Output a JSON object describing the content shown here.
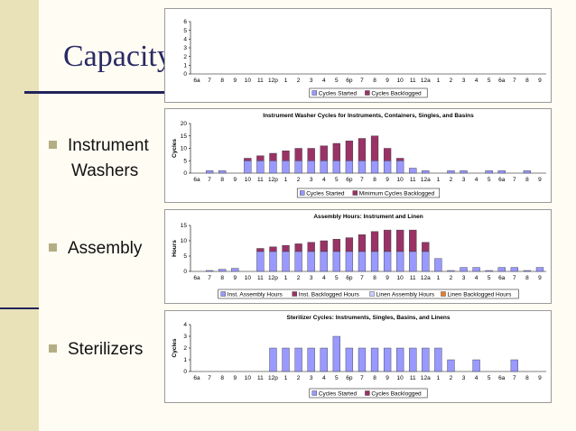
{
  "slide": {
    "title": "Capacity",
    "bullets": [
      {
        "lines": [
          "Instrument",
          "Washers"
        ]
      },
      {
        "lines": [
          "Assembly"
        ]
      },
      {
        "lines": [
          "Sterilizers"
        ]
      }
    ]
  },
  "chart_data": [
    {
      "type": "bar",
      "stacked": true,
      "title": "",
      "ylabel": "",
      "categories": [
        "6a",
        "7",
        "8",
        "9",
        "10",
        "11",
        "12p",
        "1",
        "2",
        "3",
        "4",
        "5",
        "6p",
        "7",
        "8",
        "9",
        "10",
        "11",
        "12a",
        "1",
        "2",
        "3",
        "4",
        "5",
        "6a",
        "7",
        "8",
        "9"
      ],
      "ylim": [
        0,
        6
      ],
      "yticks": [
        0,
        1,
        2,
        3,
        4,
        5,
        6
      ],
      "series": [
        {
          "name": "Cycles Started",
          "color": "#9999ff",
          "values": [
            0,
            0,
            0,
            0,
            0,
            0,
            0,
            0,
            0,
            0,
            0,
            0,
            0,
            0,
            0,
            0,
            0,
            0,
            0,
            0,
            0,
            0,
            0,
            0,
            0,
            0,
            0,
            0
          ]
        },
        {
          "name": "Cycles Backlogged",
          "color": "#993366",
          "values": [
            0,
            0,
            0,
            0,
            0,
            0,
            0,
            0,
            0,
            0,
            0,
            0,
            0,
            0,
            0,
            0,
            0,
            0,
            0,
            0,
            0,
            0,
            0,
            0,
            0,
            0,
            0,
            0
          ]
        }
      ],
      "legend": "bottom"
    },
    {
      "type": "bar",
      "stacked": true,
      "title": "Instrument Washer Cycles for Instruments, Containers, Singles, and Basins",
      "ylabel": "Cycles",
      "categories": [
        "6a",
        "7",
        "8",
        "9",
        "10",
        "11",
        "12p",
        "1",
        "2",
        "3",
        "4",
        "5",
        "6p",
        "7",
        "8",
        "9",
        "10",
        "11",
        "12a",
        "1",
        "2",
        "3",
        "4",
        "5",
        "6a",
        "7",
        "8",
        "9"
      ],
      "ylim": [
        0,
        20
      ],
      "yticks": [
        0,
        5,
        10,
        15,
        20
      ],
      "series": [
        {
          "name": "Cycles Started",
          "color": "#9999ff",
          "values": [
            0,
            1,
            1,
            0,
            5,
            5,
            5,
            5,
            5,
            5,
            5,
            5,
            5,
            5,
            5,
            5,
            5,
            2,
            1,
            0,
            1,
            1,
            0,
            1,
            1,
            0,
            1,
            0
          ]
        },
        {
          "name": "Minimum Cycles Backlogged",
          "color": "#993366",
          "values": [
            0,
            0,
            0,
            0,
            1,
            2,
            3,
            4,
            5,
            5,
            6,
            7,
            8,
            9,
            10,
            5,
            1,
            0,
            0,
            0,
            0,
            0,
            0,
            0,
            0,
            0,
            0,
            0
          ]
        }
      ],
      "legend": "bottom"
    },
    {
      "type": "bar",
      "stacked": true,
      "title": "Assembly Hours: Instrument and Linen",
      "ylabel": "Hours",
      "categories": [
        "6a",
        "7",
        "8",
        "9",
        "10",
        "11",
        "12p",
        "1",
        "2",
        "3",
        "4",
        "5",
        "6p",
        "7",
        "8",
        "9",
        "10",
        "11",
        "12a",
        "1",
        "2",
        "3",
        "4",
        "5",
        "6a",
        "7",
        "8",
        "9"
      ],
      "ylim": [
        0,
        15
      ],
      "yticks": [
        0,
        5,
        10,
        15
      ],
      "series": [
        {
          "name": "Inst. Assembly Hours",
          "color": "#9999ff",
          "values": [
            0,
            0.3,
            0.7,
            1,
            0,
            6.5,
            6.5,
            6.5,
            6.5,
            6.5,
            6.5,
            6.5,
            6.5,
            6.5,
            6.5,
            6.5,
            6.5,
            6.5,
            6.5,
            4.2,
            0.3,
            1.3,
            1.3,
            0.3,
            1.3,
            1.3,
            0.3,
            1.3
          ]
        },
        {
          "name": "Inst. Backlogged Hours",
          "color": "#993366",
          "values": [
            0,
            0,
            0,
            0,
            0,
            1,
            1.5,
            2,
            2.5,
            3,
            3.5,
            4,
            4.5,
            5.5,
            6.5,
            7,
            7,
            7,
            3,
            0,
            0,
            0,
            0,
            0,
            0,
            0,
            0,
            0
          ]
        },
        {
          "name": "Linen Assembly Hours",
          "color": "#ccccff",
          "values": [
            0,
            0,
            0,
            0,
            0,
            0,
            0,
            0,
            0,
            0,
            0,
            0,
            0,
            0,
            0,
            0,
            0,
            0,
            0,
            0,
            0,
            0,
            0,
            0,
            0,
            0,
            0,
            0
          ]
        },
        {
          "name": "Linen Backlogged Hours",
          "color": "#e87d2b",
          "values": [
            0,
            0,
            0,
            0,
            0,
            0,
            0,
            0,
            0,
            0,
            0,
            0,
            0,
            0,
            0,
            0,
            0,
            0,
            0,
            0,
            0,
            0,
            0,
            0,
            0,
            0,
            0,
            0
          ]
        }
      ],
      "legend": "bottom"
    },
    {
      "type": "bar",
      "stacked": true,
      "title": "Sterilizer Cycles: Instruments, Singles, Basins, and Linens",
      "ylabel": "Cycles",
      "categories": [
        "6a",
        "7",
        "8",
        "9",
        "10",
        "11",
        "12p",
        "1",
        "2",
        "3",
        "4",
        "5",
        "6p",
        "7",
        "8",
        "9",
        "10",
        "11",
        "12a",
        "1",
        "2",
        "3",
        "4",
        "5",
        "6a",
        "7",
        "8",
        "9"
      ],
      "ylim": [
        0,
        4
      ],
      "yticks": [
        0,
        1,
        2,
        3,
        4
      ],
      "series": [
        {
          "name": "Cycles Started",
          "color": "#9999ff",
          "values": [
            0,
            0,
            0,
            0,
            0,
            0,
            2,
            2,
            2,
            2,
            2,
            3,
            2,
            2,
            2,
            2,
            2,
            2,
            2,
            2,
            1,
            0,
            1,
            0,
            0,
            1,
            0,
            0
          ]
        },
        {
          "name": "Cycles Backlogged",
          "color": "#993366",
          "values": [
            0,
            0,
            0,
            0,
            0,
            0,
            0,
            0,
            0,
            0,
            0,
            0,
            0,
            0,
            0,
            0,
            0,
            0,
            0,
            0,
            0,
            0,
            0,
            0,
            0,
            0,
            0,
            0
          ]
        }
      ],
      "legend": "bottom"
    }
  ]
}
